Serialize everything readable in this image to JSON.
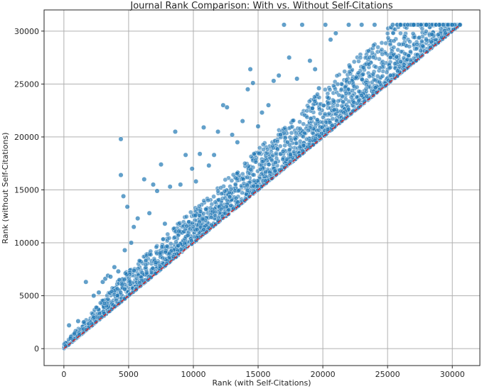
{
  "chart_data": {
    "type": "scatter",
    "title": "Journal Rank Comparison: With vs. Without Self-Citations",
    "xlabel": "Rank (with Self-Citations)",
    "ylabel": "Rank (without Self-Citations)",
    "xlim": [
      -1530,
      32130
    ],
    "ylim": [
      -1600,
      32000
    ],
    "xticks": [
      0,
      5000,
      10000,
      15000,
      20000,
      25000,
      30000
    ],
    "yticks": [
      0,
      5000,
      10000,
      15000,
      20000,
      25000,
      30000
    ],
    "grid": true,
    "point_color": "#1f77b4",
    "reference_line": {
      "style": "dashed",
      "color": "#d62728",
      "from": [
        0,
        0
      ],
      "to": [
        30600,
        30600
      ]
    },
    "series": [
      {
        "points": [
          [
            400,
            2200
          ],
          [
            1100,
            2600
          ],
          [
            1700,
            6300
          ],
          [
            2300,
            5000
          ],
          [
            2700,
            5300
          ],
          [
            3000,
            6300
          ],
          [
            3200,
            6600
          ],
          [
            3400,
            6900
          ],
          [
            3600,
            6800
          ],
          [
            3900,
            7700
          ],
          [
            4200,
            7300
          ],
          [
            4400,
            19800
          ],
          [
            4400,
            16400
          ],
          [
            4600,
            14400
          ],
          [
            4900,
            13400
          ],
          [
            4700,
            9300
          ],
          [
            5200,
            10000
          ],
          [
            5400,
            11500
          ],
          [
            5700,
            12300
          ],
          [
            6200,
            16000
          ],
          [
            6600,
            12800
          ],
          [
            6900,
            15500
          ],
          [
            7200,
            14900
          ],
          [
            7500,
            17400
          ],
          [
            7800,
            11800
          ],
          [
            8200,
            15300
          ],
          [
            8600,
            20500
          ],
          [
            9000,
            15500
          ],
          [
            9400,
            18300
          ],
          [
            9900,
            17000
          ],
          [
            10200,
            15800
          ],
          [
            10500,
            18400
          ],
          [
            10800,
            20900
          ],
          [
            11200,
            17300
          ],
          [
            11600,
            18300
          ],
          [
            11900,
            20500
          ],
          [
            12300,
            23000
          ],
          [
            12600,
            22800
          ],
          [
            13000,
            20200
          ],
          [
            13400,
            19500
          ],
          [
            13800,
            21500
          ],
          [
            14200,
            24500
          ],
          [
            14400,
            26400
          ],
          [
            14600,
            25100
          ],
          [
            15000,
            21000
          ],
          [
            15300,
            22300
          ],
          [
            15800,
            23000
          ],
          [
            16200,
            25300
          ],
          [
            16600,
            25800
          ],
          [
            17000,
            30600
          ],
          [
            17400,
            27500
          ],
          [
            18000,
            25500
          ],
          [
            18400,
            30600
          ],
          [
            19000,
            27200
          ],
          [
            19400,
            26400
          ],
          [
            19700,
            24600
          ],
          [
            20200,
            30600
          ],
          [
            20600,
            29200
          ],
          [
            21000,
            29800
          ],
          [
            22000,
            30600
          ],
          [
            23000,
            30600
          ],
          [
            24000,
            30600
          ],
          [
            25400,
            30600
          ],
          [
            26000,
            30600
          ],
          [
            27000,
            30600
          ],
          [
            28000,
            30600
          ],
          [
            29000,
            30600
          ],
          [
            30000,
            30600
          ],
          [
            30600,
            30600
          ]
        ]
      }
    ]
  }
}
